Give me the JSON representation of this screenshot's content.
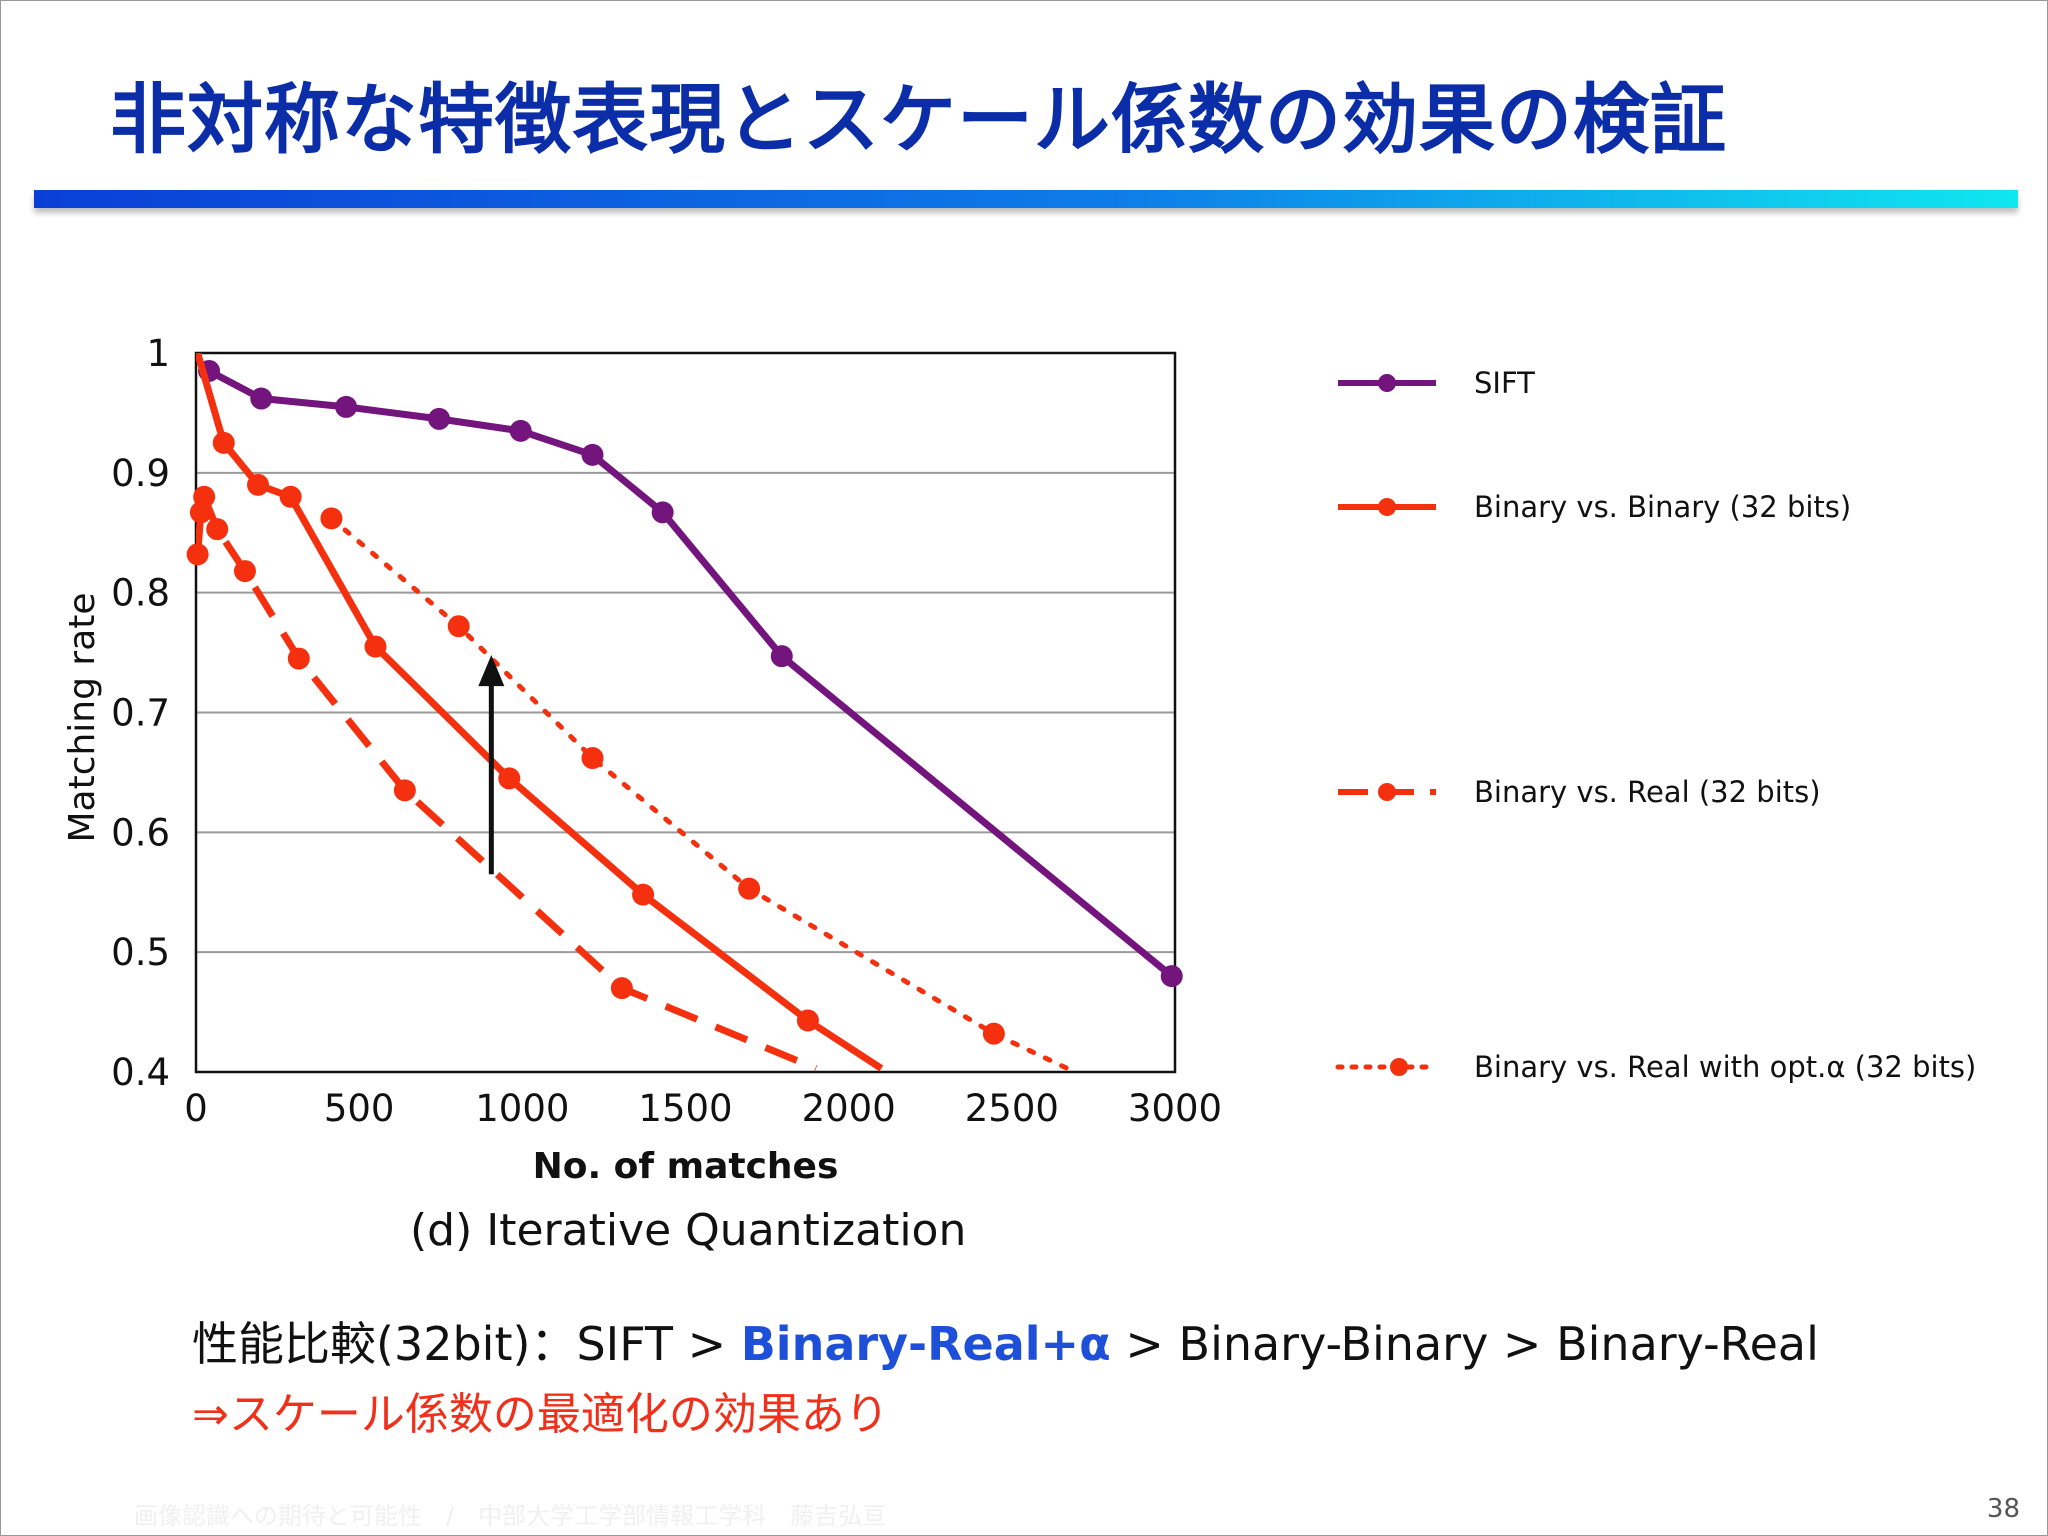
{
  "slide": {
    "title": "非対称な特徴表現とスケール係数の効果の検証",
    "caption": "(d) Iterative Quantization",
    "summary_prefix": "性能比較(32bit)：SIFT > ",
    "summary_highlight": "Binary-Real+α",
    "summary_suffix": " > Binary-Binary > Binary-Real",
    "conclusion": "⇒スケール係数の最適化の効果あり",
    "footer": "画像認識への期待と可能性　/　中部大学工学部情報工学科　藤吉弘亘",
    "page_number": "38"
  },
  "chart_data": {
    "type": "line",
    "xlabel": "No. of matches",
    "ylabel": "Matching rate",
    "xlim": [
      0,
      3000
    ],
    "ylim": [
      0.4,
      1.0
    ],
    "xticks": [
      "0",
      "500",
      "1000",
      "1500",
      "2000",
      "2500",
      "3000"
    ],
    "yticks": [
      "0.4",
      "0.5",
      "0.6",
      "0.7",
      "0.8",
      "0.9",
      "1"
    ],
    "grid": "horizontal",
    "legend_position": "right",
    "annotation": "upward arrow from Binary vs. Real toward Binary vs. Real with opt.α",
    "series": [
      {
        "name": "SIFT",
        "color": "#74157e",
        "style": "solid",
        "x": [
          40,
          200,
          460,
          745,
          995,
          1215,
          1430,
          1795,
          2990
        ],
        "y": [
          0.985,
          0.962,
          0.955,
          0.945,
          0.935,
          0.915,
          0.867,
          0.747,
          0.48
        ]
      },
      {
        "name": "Binary vs. Binary (32 bits)",
        "color": "#f5300f",
        "style": "solid",
        "x": [
          5,
          85,
          190,
          290,
          550,
          960,
          1370,
          1875,
          2100
        ],
        "y": [
          1.0,
          0.925,
          0.89,
          0.88,
          0.755,
          0.645,
          0.548,
          0.443,
          0.403
        ]
      },
      {
        "name": "Binary vs. Real (32 bits)",
        "color": "#f5300f",
        "style": "dashed",
        "x": [
          5,
          15,
          25,
          65,
          150,
          315,
          640,
          1305,
          1900
        ],
        "y": [
          0.832,
          0.867,
          0.88,
          0.853,
          0.818,
          0.745,
          0.635,
          0.47,
          0.403
        ]
      },
      {
        "name": "Binary vs. Real with opt.α (32 bits)",
        "color": "#f5300f",
        "style": "dotted",
        "x": [
          415,
          805,
          1215,
          1695,
          2445,
          2670
        ],
        "y": [
          0.862,
          0.772,
          0.662,
          0.553,
          0.432,
          0.403
        ]
      }
    ]
  }
}
